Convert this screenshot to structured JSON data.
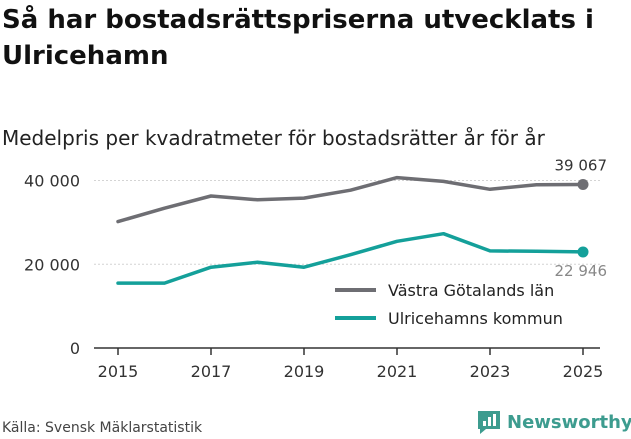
{
  "header": {
    "title": "Så har bostadsrättspriserna utvecklats i Ulricehamn",
    "subtitle": "Medelpris per kvadratmeter för bostadsrätter år för år"
  },
  "footer": {
    "source": "Källa: Svensk Mäklarstatistik",
    "brand": "Newsworthy"
  },
  "chart_data": {
    "type": "line",
    "title": "Så har bostadsrättspriserna utvecklats i Ulricehamn",
    "subtitle": "Medelpris per kvadratmeter för bostadsrätter år för år",
    "xlabel": "",
    "ylabel": "",
    "x": [
      2015,
      2016,
      2017,
      2018,
      2019,
      2020,
      2021,
      2022,
      2023,
      2024,
      2025
    ],
    "xticks": [
      "2015",
      "2017",
      "2019",
      "2021",
      "2023",
      "2025"
    ],
    "xticks_values": [
      2015,
      2017,
      2019,
      2021,
      2023,
      2025
    ],
    "yticks": [
      "0",
      "20 000",
      "40 000"
    ],
    "yticks_values": [
      0,
      20000,
      40000
    ],
    "ylim": [
      0,
      43000
    ],
    "legend_position": "bottom-right",
    "series": [
      {
        "name": "Västra Götalands län",
        "color": "#6e6e73",
        "values": [
          30200,
          33400,
          36300,
          35400,
          35800,
          37700,
          40700,
          39800,
          37900,
          39000,
          39067
        ],
        "end_label": "39 067"
      },
      {
        "name": "Ulricehamns kommun",
        "color": "#14a09a",
        "values": [
          15500,
          15500,
          19300,
          20500,
          19300,
          22300,
          25500,
          27300,
          23200,
          23100,
          22946
        ],
        "end_label": "22 946"
      }
    ]
  }
}
